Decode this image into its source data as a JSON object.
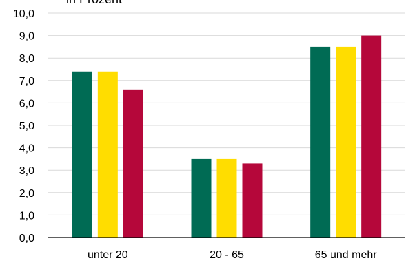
{
  "chart_data": {
    "type": "bar",
    "unit_label": "in Prozent",
    "categories": [
      "unter 20",
      "20 - 65",
      "65 und mehr"
    ],
    "series": [
      {
        "values": [
          7.4,
          3.5,
          8.5
        ],
        "color": "#006B54"
      },
      {
        "values": [
          7.4,
          3.5,
          8.5
        ],
        "color": "#FFDD00"
      },
      {
        "values": [
          6.6,
          3.3,
          9.0
        ],
        "color": "#B5073A"
      }
    ],
    "ylim": [
      0,
      10
    ],
    "y_ticks": [
      "0,0",
      "1,0",
      "2,0",
      "3,0",
      "4,0",
      "5,0",
      "6,0",
      "7,0",
      "8,0",
      "9,0",
      "10,0"
    ],
    "grid": true,
    "legend": "none"
  }
}
